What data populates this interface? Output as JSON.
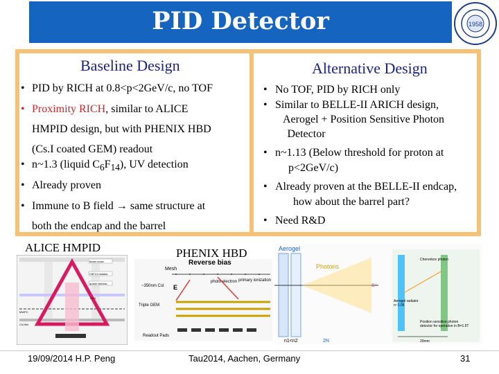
{
  "title": "PID Detector",
  "logo": {
    "icon": "university-seal-icon",
    "year": "1958"
  },
  "left": {
    "heading": "Baseline Design",
    "bullets": [
      {
        "text": "PID by RICH at 0.8<p<2GeV/c, no TOF"
      },
      {
        "red": "Proximity RICH",
        "text": ", similar to ALICE",
        "cont1": "HMPID design, but with PHENIX HBD",
        "cont2": "(Cs.I coated GEM) readout"
      },
      {
        "pre": "n~1.3 (liquid C",
        "sub1": "6",
        "mid": "F",
        "sub2": "14",
        "post": "), UV detection"
      },
      {
        "text": "Already proven"
      },
      {
        "pre": "Immune to B field ",
        "arrow": "→",
        "post": " same structure at",
        "cont1": "both the endcap and the barrel"
      }
    ]
  },
  "right": {
    "heading": "Alternative Design",
    "bullets": [
      {
        "text": "No TOF, PID by RICH only"
      },
      {
        "text": "Similar to BELLE-II ARICH design,",
        "cont1": "Aerogel + Position Sensitive Photon",
        "cont2": "Detector"
      },
      {
        "text": "n~1.13 (Below threshold for proton at",
        "cont1": "p<2GeV/c)"
      },
      {
        "text": "Already proven at the BELLE-II endcap,",
        "cont1": "how about the barrel part?"
      },
      {
        "text": "Need R&D"
      }
    ]
  },
  "captions": {
    "alice": "ALICE HMPID",
    "phenix": "PHENIX HBD"
  },
  "alice_fig": {
    "labels": [
      "beam cross",
      "C6F14 radiator",
      "quartz window",
      "CH4",
      "MWPC",
      "CsI film"
    ]
  },
  "phenix_fig": {
    "mesh": "Mesh",
    "reverse_bias": "Reverse bias",
    "photo_electron": "photo\nelectron",
    "primary_ionization": "primary\nionization",
    "gap": "~350nm CsI",
    "e_label": "E",
    "triple_gem": "Triple\nGEM",
    "readout": "Readout Pads"
  },
  "arich_fig": {
    "aerogel": "Aerogel",
    "photons": "Photons",
    "electron": "e⁻",
    "n1n2": "n1<n2",
    "ncalc": "2N",
    "cherenkov": "Cherenkov photon",
    "aerogel_radiator": "Aerogel radiator",
    "aerogel_n": "n~1.05",
    "sensor": "Position sensitive photon",
    "sensor2": "detector for operation in B=1.5T",
    "dist": "20mm"
  },
  "footer": {
    "date": "19/09/2014 H.P. Peng",
    "conference": "Tau2014,  Aachen,  Germany",
    "page": "31"
  }
}
